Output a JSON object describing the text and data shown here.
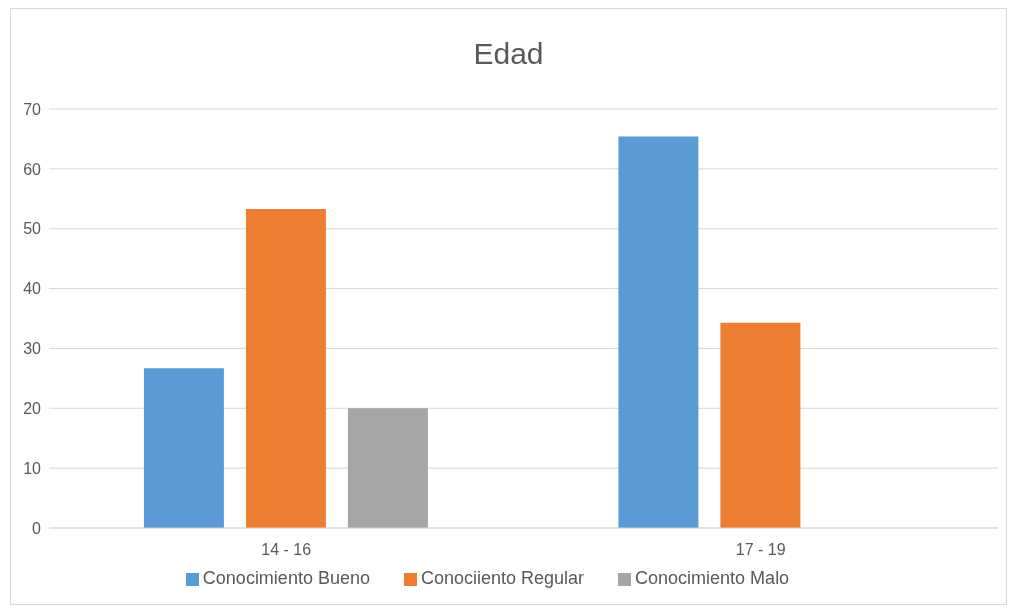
{
  "chart_data": {
    "type": "bar",
    "title": "Edad",
    "categories": [
      "14 - 16",
      "17 - 19"
    ],
    "series": [
      {
        "name": "Conocimiento Bueno",
        "color": "#5b9bd5",
        "values": [
          26.7,
          65.4
        ]
      },
      {
        "name": "Conociiento Regular",
        "color": "#ed7d31",
        "values": [
          53.3,
          34.3
        ]
      },
      {
        "name": "Conocimiento Malo",
        "color": "#a5a5a5",
        "values": [
          20,
          0
        ]
      }
    ],
    "ylim": [
      0,
      70
    ],
    "yticks": [
      0,
      10,
      20,
      30,
      40,
      50,
      60,
      70
    ],
    "grid": "y",
    "legend": "bottom"
  }
}
